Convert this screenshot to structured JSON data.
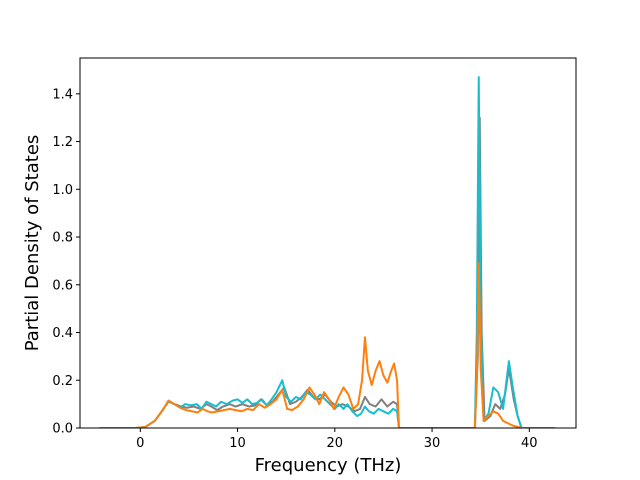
{
  "chart_data": {
    "type": "line",
    "title": "",
    "xlabel": "Frequency (THz)",
    "ylabel": "Partial Density of States",
    "xlim": [
      -6.2,
      44.8
    ],
    "ylim": [
      0.0,
      1.55
    ],
    "xticks": [
      0,
      10,
      20,
      30,
      40
    ],
    "xtick_labels": [
      "0",
      "10",
      "20",
      "30",
      "40"
    ],
    "yticks": [
      0.0,
      0.2,
      0.4,
      0.6,
      0.8,
      1.0,
      1.2,
      1.4
    ],
    "ytick_labels": [
      "0.0",
      "0.2",
      "0.4",
      "0.6",
      "0.8",
      "1.0",
      "1.2",
      "1.4"
    ],
    "grid": false,
    "legend": "none",
    "series": [
      {
        "color": "#7f7f7f",
        "points": [
          [
            -4.2,
            0
          ],
          [
            -0.5,
            0
          ],
          [
            0.5,
            0.004
          ],
          [
            1.5,
            0.03
          ],
          [
            2.3,
            0.075
          ],
          [
            2.9,
            0.112
          ],
          [
            3.5,
            0.1
          ],
          [
            4.2,
            0.09
          ],
          [
            4.8,
            0.085
          ],
          [
            5.5,
            0.09
          ],
          [
            6.2,
            0.08
          ],
          [
            6.8,
            0.1
          ],
          [
            7.3,
            0.09
          ],
          [
            7.9,
            0.075
          ],
          [
            8.5,
            0.09
          ],
          [
            9.2,
            0.1
          ],
          [
            9.8,
            0.09
          ],
          [
            10.5,
            0.1
          ],
          [
            11.2,
            0.09
          ],
          [
            11.8,
            0.095
          ],
          [
            12.4,
            0.12
          ],
          [
            13.0,
            0.095
          ],
          [
            13.6,
            0.11
          ],
          [
            14.2,
            0.14
          ],
          [
            14.8,
            0.17
          ],
          [
            15.4,
            0.1
          ],
          [
            16.0,
            0.11
          ],
          [
            16.6,
            0.13
          ],
          [
            17.2,
            0.16
          ],
          [
            17.8,
            0.13
          ],
          [
            18.4,
            0.12
          ],
          [
            19.0,
            0.14
          ],
          [
            19.6,
            0.11
          ],
          [
            20.2,
            0.09
          ],
          [
            20.8,
            0.1
          ],
          [
            21.4,
            0.09
          ],
          [
            22.0,
            0.07
          ],
          [
            22.6,
            0.08
          ],
          [
            23.1,
            0.13
          ],
          [
            23.6,
            0.1
          ],
          [
            24.2,
            0.09
          ],
          [
            24.8,
            0.12
          ],
          [
            25.4,
            0.09
          ],
          [
            26.0,
            0.11
          ],
          [
            26.4,
            0.1
          ],
          [
            26.6,
            0
          ],
          [
            34.4,
            0
          ],
          [
            34.7,
            0.3
          ],
          [
            34.9,
            1.3
          ],
          [
            35.1,
            0.4
          ],
          [
            35.4,
            0.03
          ],
          [
            36.0,
            0.05
          ],
          [
            36.5,
            0.1
          ],
          [
            37.0,
            0.08
          ],
          [
            37.5,
            0.14
          ],
          [
            37.9,
            0.25
          ],
          [
            38.4,
            0.12
          ],
          [
            38.8,
            0.05
          ],
          [
            39.2,
            0
          ],
          [
            42.6,
            0
          ]
        ]
      },
      {
        "color": "#17becf",
        "points": [
          [
            -4.2,
            0
          ],
          [
            -0.5,
            0
          ],
          [
            0.5,
            0.004
          ],
          [
            1.5,
            0.03
          ],
          [
            2.3,
            0.075
          ],
          [
            2.9,
            0.11
          ],
          [
            3.5,
            0.1
          ],
          [
            4.1,
            0.085
          ],
          [
            4.6,
            0.1
          ],
          [
            5.2,
            0.095
          ],
          [
            5.8,
            0.1
          ],
          [
            6.3,
            0.08
          ],
          [
            6.8,
            0.11
          ],
          [
            7.3,
            0.1
          ],
          [
            7.8,
            0.09
          ],
          [
            8.3,
            0.11
          ],
          [
            8.9,
            0.1
          ],
          [
            9.5,
            0.115
          ],
          [
            10.0,
            0.12
          ],
          [
            10.5,
            0.105
          ],
          [
            11.0,
            0.12
          ],
          [
            11.5,
            0.1
          ],
          [
            12.0,
            0.105
          ],
          [
            12.5,
            0.12
          ],
          [
            13.0,
            0.095
          ],
          [
            13.5,
            0.12
          ],
          [
            14.0,
            0.15
          ],
          [
            14.6,
            0.2
          ],
          [
            15.0,
            0.13
          ],
          [
            15.5,
            0.11
          ],
          [
            16.0,
            0.13
          ],
          [
            16.5,
            0.12
          ],
          [
            17.0,
            0.15
          ],
          [
            17.5,
            0.14
          ],
          [
            18.0,
            0.12
          ],
          [
            18.5,
            0.14
          ],
          [
            19.0,
            0.12
          ],
          [
            19.5,
            0.1
          ],
          [
            20.0,
            0.08
          ],
          [
            20.4,
            0.1
          ],
          [
            20.9,
            0.08
          ],
          [
            21.3,
            0.1
          ],
          [
            21.8,
            0.07
          ],
          [
            22.3,
            0.05
          ],
          [
            22.7,
            0.06
          ],
          [
            23.1,
            0.09
          ],
          [
            23.5,
            0.07
          ],
          [
            24.0,
            0.06
          ],
          [
            24.5,
            0.08
          ],
          [
            25.0,
            0.07
          ],
          [
            25.5,
            0.06
          ],
          [
            26.0,
            0.08
          ],
          [
            26.4,
            0.07
          ],
          [
            26.6,
            0
          ],
          [
            34.4,
            0
          ],
          [
            34.6,
            0.4
          ],
          [
            34.8,
            1.47
          ],
          [
            35.0,
            0.5
          ],
          [
            35.3,
            0.03
          ],
          [
            35.8,
            0.06
          ],
          [
            36.3,
            0.17
          ],
          [
            36.8,
            0.15
          ],
          [
            37.3,
            0.08
          ],
          [
            37.6,
            0.18
          ],
          [
            37.9,
            0.28
          ],
          [
            38.3,
            0.17
          ],
          [
            38.8,
            0.05
          ],
          [
            39.2,
            0
          ],
          [
            42.6,
            0
          ]
        ]
      },
      {
        "color": "#ff7f0e",
        "points": [
          [
            -4.2,
            0
          ],
          [
            -0.5,
            0
          ],
          [
            0.5,
            0.004
          ],
          [
            1.5,
            0.03
          ],
          [
            2.3,
            0.075
          ],
          [
            2.9,
            0.115
          ],
          [
            3.5,
            0.1
          ],
          [
            4.1,
            0.085
          ],
          [
            4.7,
            0.075
          ],
          [
            5.3,
            0.07
          ],
          [
            5.9,
            0.065
          ],
          [
            6.4,
            0.08
          ],
          [
            6.9,
            0.07
          ],
          [
            7.4,
            0.065
          ],
          [
            8.0,
            0.07
          ],
          [
            8.6,
            0.075
          ],
          [
            9.2,
            0.08
          ],
          [
            9.8,
            0.075
          ],
          [
            10.4,
            0.07
          ],
          [
            11.0,
            0.08
          ],
          [
            11.6,
            0.075
          ],
          [
            12.2,
            0.1
          ],
          [
            12.8,
            0.085
          ],
          [
            13.4,
            0.1
          ],
          [
            14.0,
            0.12
          ],
          [
            14.6,
            0.16
          ],
          [
            15.1,
            0.08
          ],
          [
            15.6,
            0.075
          ],
          [
            16.2,
            0.09
          ],
          [
            16.8,
            0.12
          ],
          [
            17.4,
            0.17
          ],
          [
            17.9,
            0.14
          ],
          [
            18.4,
            0.1
          ],
          [
            18.9,
            0.15
          ],
          [
            19.4,
            0.12
          ],
          [
            19.9,
            0.08
          ],
          [
            20.4,
            0.13
          ],
          [
            20.9,
            0.17
          ],
          [
            21.4,
            0.14
          ],
          [
            21.9,
            0.08
          ],
          [
            22.4,
            0.1
          ],
          [
            22.8,
            0.2
          ],
          [
            23.1,
            0.38
          ],
          [
            23.4,
            0.24
          ],
          [
            23.8,
            0.18
          ],
          [
            24.2,
            0.24
          ],
          [
            24.6,
            0.28
          ],
          [
            25.0,
            0.22
          ],
          [
            25.4,
            0.19
          ],
          [
            25.8,
            0.24
          ],
          [
            26.1,
            0.27
          ],
          [
            26.4,
            0.2
          ],
          [
            26.6,
            0
          ],
          [
            34.4,
            0
          ],
          [
            34.6,
            0.2
          ],
          [
            34.8,
            0.69
          ],
          [
            35.0,
            0.25
          ],
          [
            35.3,
            0.03
          ],
          [
            35.8,
            0.05
          ],
          [
            36.3,
            0.07
          ],
          [
            36.8,
            0.06
          ],
          [
            37.3,
            0.03
          ],
          [
            37.8,
            0.02
          ],
          [
            38.3,
            0.01
          ],
          [
            38.8,
            0.005
          ],
          [
            39.2,
            0
          ],
          [
            42.6,
            0
          ]
        ]
      }
    ]
  }
}
